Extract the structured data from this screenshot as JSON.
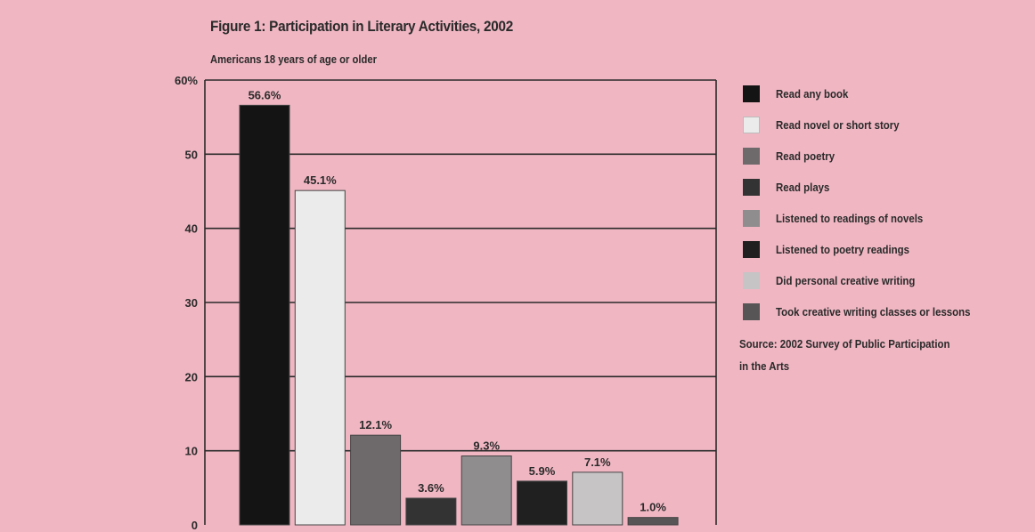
{
  "chart_data": {
    "type": "bar",
    "title": "Figure 1: Participation in Literary Activities, 2002",
    "subtitle": "Americans 18 years of age or older",
    "categories": [
      "Read any book",
      "Read novel or short story",
      "Read poetry",
      "Read plays",
      "Listened to readings of novels",
      "Listened to poetry readings",
      "Did personal creative writing",
      "Took creative writing classes or lessons"
    ],
    "values": [
      56.6,
      45.1,
      12.1,
      3.6,
      9.3,
      5.9,
      7.1,
      1.0
    ],
    "value_labels": [
      "56.6%",
      "45.1%",
      "12.1%",
      "3.6%",
      "9.3%",
      "5.9%",
      "7.1%",
      "1.0%"
    ],
    "colors": [
      "#141414",
      "#ecebeb",
      "#6e6a6c",
      "#333333",
      "#8f8d8e",
      "#202020",
      "#c6c4c5",
      "#575556"
    ],
    "ylim": [
      0,
      60
    ],
    "yticks": [
      0,
      10,
      20,
      30,
      40,
      50,
      60
    ],
    "ytick_labels": [
      "0",
      "10",
      "20",
      "30",
      "40",
      "50",
      "60%"
    ],
    "grid": true,
    "legend_position": "right",
    "source": [
      "Source: 2002 Survey of Public Participation",
      "in the Arts"
    ]
  }
}
